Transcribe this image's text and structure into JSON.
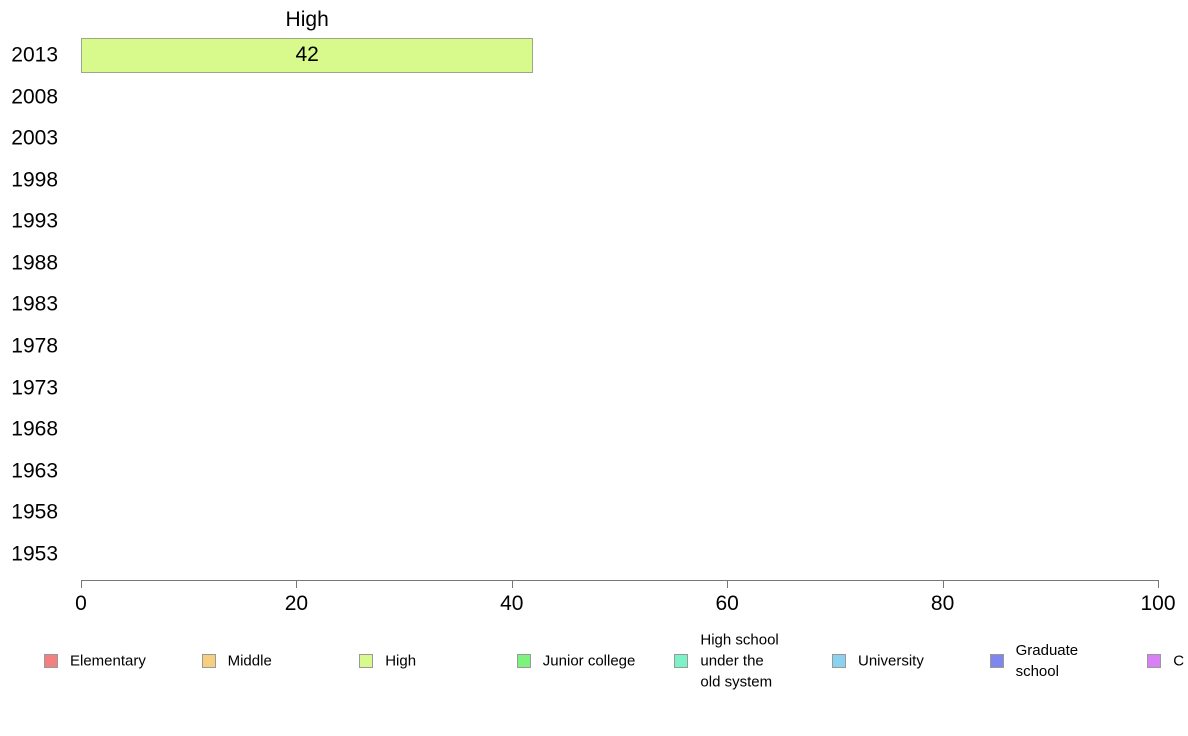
{
  "page": {
    "background": "#ffffff",
    "text_color": "#000000",
    "axis_color": "#777777"
  },
  "chart_data": {
    "type": "bar",
    "orientation": "horizontal",
    "title": "High",
    "categories": [
      "2013",
      "2008",
      "2003",
      "1998",
      "1993",
      "1988",
      "1983",
      "1978",
      "1973",
      "1968",
      "1963",
      "1958",
      "1953"
    ],
    "series": [
      {
        "name": "High",
        "color": "#d8fa8c",
        "border_color": "#9aa98a",
        "values": [
          42,
          null,
          null,
          null,
          null,
          null,
          null,
          null,
          null,
          null,
          null,
          null,
          null
        ]
      }
    ],
    "bar_value_labels_shown": true,
    "xlabel": "",
    "ylabel": "",
    "xlim": [
      0,
      100
    ],
    "x_ticks": [
      "0",
      "20",
      "40",
      "60",
      "80",
      "100"
    ],
    "x_tick_values": [
      0,
      20,
      40,
      60,
      80,
      100
    ],
    "grid": false,
    "legend": {
      "position": "bottom",
      "entries": [
        {
          "label": "Elementary",
          "color": "#f28080"
        },
        {
          "label": "Middle",
          "color": "#f7cf80"
        },
        {
          "label": "High",
          "color": "#d8fa8c"
        },
        {
          "label": "Junior college",
          "color": "#7ef27e"
        },
        {
          "label": "High school under the old system",
          "lines": [
            "High school",
            "under the",
            "old system"
          ],
          "color": "#7df2c8"
        },
        {
          "label": "University",
          "color": "#8ad2f0"
        },
        {
          "label": "Graduate school",
          "lines": [
            "Graduate",
            "school"
          ],
          "color": "#7e86f0"
        },
        {
          "label": "C",
          "color": "#d880f5"
        }
      ]
    }
  }
}
